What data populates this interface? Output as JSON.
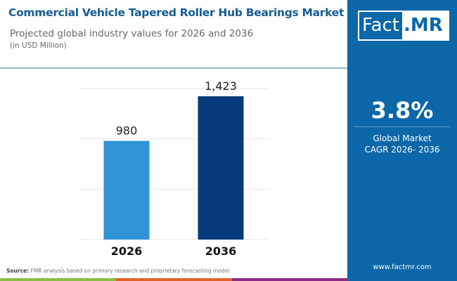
{
  "header": {
    "title": "Commercial Vehicle Tapered Roller Hub Bearings Market",
    "subtitle": "Projected global industry values for 2026 and 2036",
    "unit": "(in USD Million)"
  },
  "logo": {
    "part1": "Fact",
    "part2": ".MR"
  },
  "cagr": {
    "value": "3.8%",
    "label_line1": "Global Market",
    "label_line2": "CAGR 2026- 2036"
  },
  "footer": {
    "source_label": "Source:",
    "source_text": " FMR analysis based on primary research and proprietary forecasting model",
    "website": "www.factmr.com"
  },
  "colors": {
    "bar_2026": "#2f93d6",
    "bar_2036": "#073a7a",
    "panel": "#0b67a8",
    "title": "#165c94",
    "stripes": [
      "#8bbb45",
      "#e0642a",
      "#8b2e87"
    ]
  },
  "chart_data": {
    "type": "bar",
    "categories": [
      "2026",
      "2036"
    ],
    "values": [
      980,
      1423
    ],
    "data_labels": [
      "980",
      "1,423"
    ],
    "ylim": [
      0,
      1500
    ],
    "grid": true,
    "xlabel": "",
    "ylabel": ""
  }
}
